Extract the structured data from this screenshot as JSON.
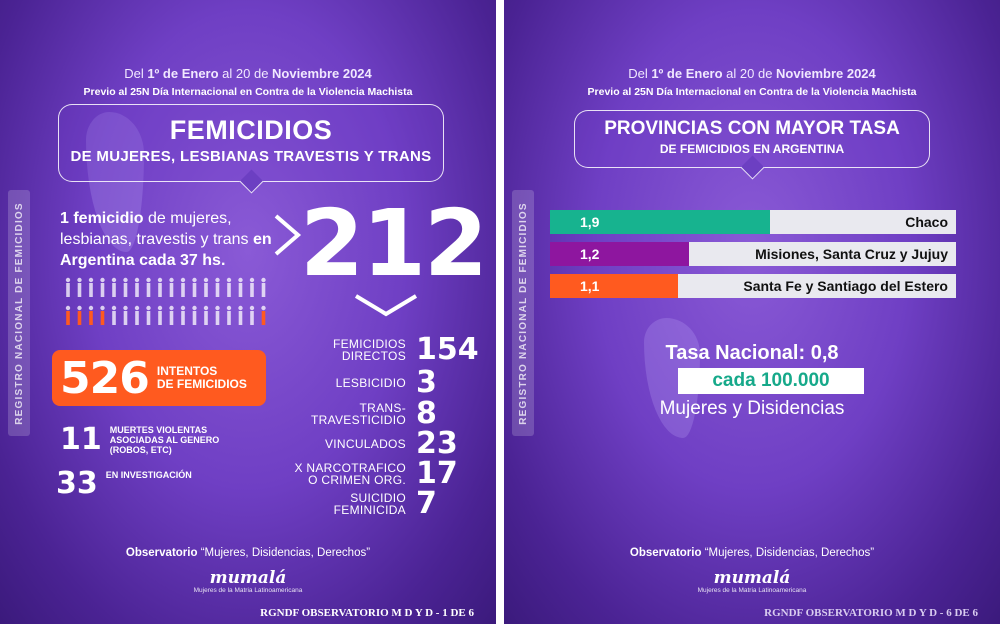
{
  "left_panel": {
    "vertical_text": "REGISTRO NACIONAL DE FEMICIDIOS",
    "date_prefix": "Del ",
    "date_start": "1º de Enero",
    "date_mid": " al 20 de ",
    "date_end": "Noviembre 2024",
    "subtitle": "Previo al 25N Día Internacional en Contra de la Violencia Machista",
    "title": "FEMICIDIOS",
    "title_sub": "DE MUJERES, LESBIANAS TRAVESTIS Y TRANS",
    "lead_bold1": "1 femicidio",
    "lead_text": " de mujeres, lesbianas, travestis y trans ",
    "lead_bold2": "en Argentina cada 37 hs.",
    "total": "212",
    "attempts": {
      "value": "526",
      "label_line1": "INTENTOS",
      "label_line2": "DE FEMICIDIOS"
    },
    "violent_deaths": {
      "value": "11",
      "line1": "MUERTES VIOLENTAS",
      "line2": "ASOCIADAS AL GENERO",
      "line3": "(ROBOS, ETC)"
    },
    "investigation": {
      "value": "33",
      "label": "EN INVESTIGACIÓN"
    },
    "categories": [
      {
        "line1": "FEMICIDIOS",
        "line2": "DIRECTOS",
        "value": "154"
      },
      {
        "line1": "LESBICIDIO",
        "line2": "",
        "value": "3"
      },
      {
        "line1": "TRANS-",
        "line2": "TRAVESTICIDIO",
        "value": "8"
      },
      {
        "line1": "VINCULADOS",
        "line2": "",
        "value": "23"
      },
      {
        "line1": "X NARCOTRAFICO",
        "line2": "O CRIMEN ORG.",
        "value": "17"
      },
      {
        "line1": "SUICIDIO",
        "line2": "FEMINICIDA",
        "value": "7"
      }
    ],
    "observatorio_bold": "Observatorio",
    "observatorio_text": " “Mujeres, Disidencias, Derechos”",
    "logo_name": "mumalá",
    "logo_tag": "Mujeres de la Matria Latinoamericana",
    "footer": "RGNDF OBSERVATORIO M D Y D - 1 DE 6"
  },
  "right_panel": {
    "vertical_text": "REGISTRO NACIONAL DE FEMICIDIOS",
    "date_prefix": "Del ",
    "date_start": "1º de Enero",
    "date_mid": " al 20 de ",
    "date_end": "Noviembre 2024",
    "subtitle": "Previo al 25N Día Internacional en Contra de la Violencia Machista",
    "title": "PROVINCIAS CON MAYOR TASA",
    "title_sub": "DE FEMICIDIOS EN ARGENTINA",
    "rates": [
      {
        "value": "1,9",
        "name": "Chaco",
        "color": "#17b38f",
        "level": 1.9
      },
      {
        "value": "1,2",
        "name": "Misiones, Santa Cruz y Jujuy",
        "color": "#8e169f",
        "level": 1.2
      },
      {
        "value": "1,1",
        "name": "Santa Fe y Santiago del Estero",
        "color": "#ff5a1f",
        "level": 1.1
      }
    ],
    "national_label": "Tasa Nacional: 0,8",
    "national_unit": "cada 100.000",
    "national_pop": "Mujeres y Disidencias",
    "observatorio_bold": "Observatorio",
    "observatorio_text": " “Mujeres, Disidencias, Derechos”",
    "logo_name": "mumalá",
    "logo_tag": "Mujeres de la Matria Latinoamericana",
    "footer": "RGNDF OBSERVATORIO M D Y D - 6 DE 6"
  }
}
